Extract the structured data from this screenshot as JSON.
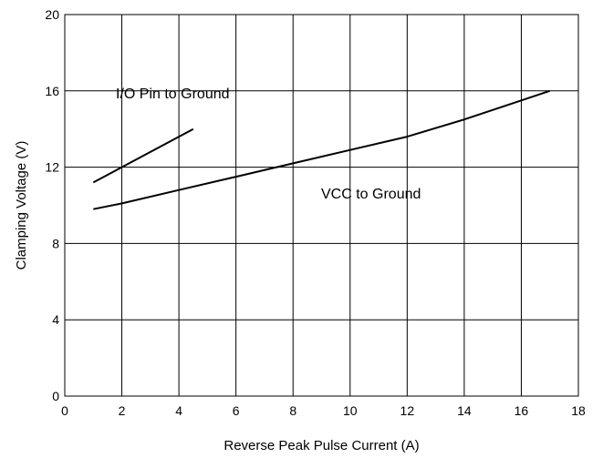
{
  "chart_data": {
    "type": "line",
    "title": "",
    "xlabel": "Reverse Peak Pulse Current (A)",
    "ylabel": "Clamping Voltage (V)",
    "xlim": [
      0,
      18
    ],
    "ylim": [
      0,
      20
    ],
    "xticks": [
      0,
      2,
      4,
      6,
      8,
      10,
      12,
      14,
      16,
      18
    ],
    "yticks": [
      0,
      4,
      8,
      12,
      16,
      20
    ],
    "xtick_labels": [
      "0",
      "2",
      "4",
      "6",
      "8",
      "10",
      "12",
      "14",
      "16",
      "18"
    ],
    "ytick_labels": [
      "0",
      "4",
      "8",
      "12",
      "16",
      "20"
    ],
    "grid": true,
    "line_color": "#000000",
    "series": [
      {
        "name": "I/O Pin to Ground",
        "x": [
          1,
          4.5
        ],
        "y": [
          11.2,
          14.0
        ]
      },
      {
        "name": "VCC to Ground",
        "x": [
          1,
          2,
          4,
          6,
          8,
          10,
          12,
          14,
          16,
          17
        ],
        "y": [
          9.8,
          10.1,
          10.8,
          11.5,
          12.2,
          12.9,
          13.6,
          14.5,
          15.5,
          16.0
        ]
      }
    ],
    "annotations": [
      {
        "text": "I/O Pin to Ground",
        "series": 0
      },
      {
        "text": "VCC to Ground",
        "series": 1
      }
    ]
  }
}
